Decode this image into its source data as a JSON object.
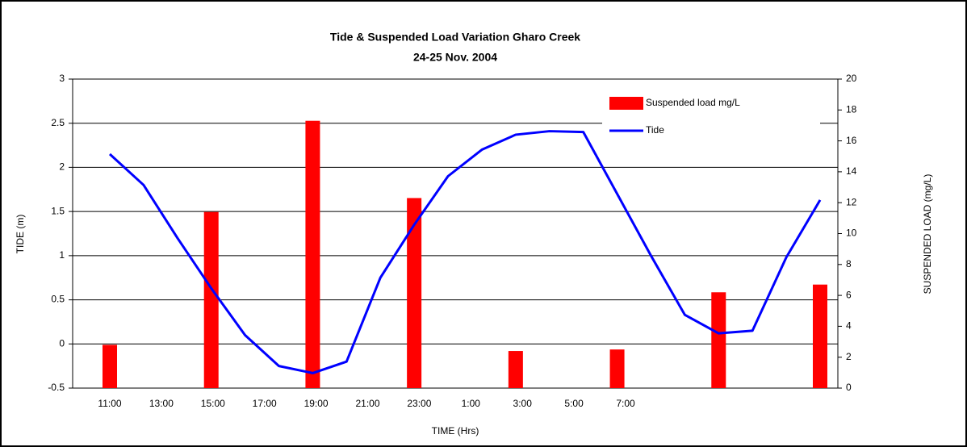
{
  "chart_data": {
    "type": "bar-line",
    "title": "Tide & Suspended Load Variation Gharo Creek",
    "subtitle": "24-25 Nov. 2004",
    "x_label": "TIME (Hrs)",
    "y_label": "TIDE (m)",
    "y2_label": "SUSPENDED LOAD (mg/L)",
    "x_tick_labels": [
      "11:00",
      "13:00",
      "15:00",
      "17:00",
      "19:00",
      "21:00",
      "23:00",
      "1:00",
      "3:00",
      "5:00",
      "7:00"
    ],
    "series": [
      {
        "name": "Suspended load mg/L",
        "color": "#ff0000",
        "kind": "bar",
        "axis": "y2",
        "values": [
          2.8,
          null,
          null,
          11.4,
          null,
          null,
          17.3,
          null,
          null,
          12.3,
          null,
          null,
          2.4,
          null,
          null,
          2.5,
          null,
          null,
          6.2,
          null,
          null,
          6.7
        ]
      },
      {
        "name": "Tide",
        "color": "#0000ff",
        "kind": "line",
        "values": [
          2.15,
          1.8,
          1.2,
          0.63,
          0.1,
          -0.25,
          -0.33,
          -0.2,
          0.75,
          1.35,
          1.9,
          2.2,
          2.37,
          2.41,
          2.4,
          1.7,
          1.0,
          0.33,
          0.12,
          0.15,
          0.98,
          1.63
        ]
      }
    ],
    "ylim": [
      -0.5,
      3
    ],
    "yticks": [
      -0.5,
      0,
      0.5,
      1,
      1.5,
      2,
      2.5,
      3
    ],
    "y2lim": [
      0,
      20
    ],
    "y2ticks": [
      0,
      2,
      4,
      6,
      8,
      10,
      12,
      14,
      16,
      18,
      20
    ],
    "grid": true
  }
}
